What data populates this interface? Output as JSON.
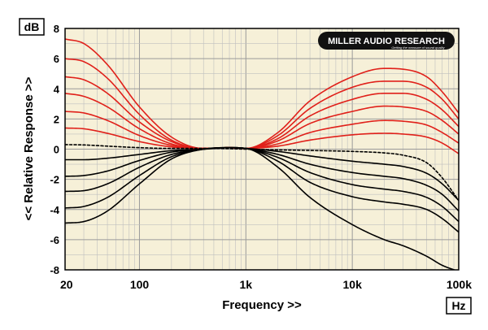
{
  "chart_data": {
    "type": "line",
    "title": "",
    "xlabel": "Frequency >>",
    "ylabel": "<< Relative Response >>",
    "x_unit": "Hz",
    "y_unit": "dB",
    "x_scale": "log",
    "xlim": [
      20,
      100000
    ],
    "ylim": [
      -8,
      8
    ],
    "x_ticks": [
      {
        "value": 20,
        "label": "20"
      },
      {
        "value": 100,
        "label": "100"
      },
      {
        "value": 1000,
        "label": "1k"
      },
      {
        "value": 10000,
        "label": "10k"
      },
      {
        "value": 100000,
        "label": "100k"
      }
    ],
    "y_ticks": [
      {
        "value": 8,
        "label": "8"
      },
      {
        "value": 6,
        "label": "6"
      },
      {
        "value": 4,
        "label": "4"
      },
      {
        "value": 2,
        "label": "2"
      },
      {
        "value": 0,
        "label": "0"
      },
      {
        "value": -2,
        "label": "-2"
      },
      {
        "value": -4,
        "label": "-4"
      },
      {
        "value": -6,
        "label": "-6"
      },
      {
        "value": -8,
        "label": "-8"
      }
    ],
    "grid": true,
    "legend": "none",
    "colors": {
      "boost": "#e0201a",
      "cut": "#000000",
      "flat": "#000000",
      "background": "#f6f0d8",
      "grid": "#bfbfbf"
    },
    "logo": {
      "brand": "MILLER AUDIO RESEARCH",
      "tagline": "Getting the measure of sound quality"
    },
    "series": [
      {
        "style": "boost",
        "points": [
          [
            20,
            7.3
          ],
          [
            30,
            7.0
          ],
          [
            50,
            5.6
          ],
          [
            100,
            2.8
          ],
          [
            200,
            0.8
          ],
          [
            400,
            0.05
          ],
          [
            700,
            0.1
          ],
          [
            1000,
            0.05
          ],
          [
            2000,
            1.1
          ],
          [
            4000,
            3.2
          ],
          [
            10000,
            4.8
          ],
          [
            20000,
            5.35
          ],
          [
            30000,
            5.3
          ],
          [
            50000,
            4.8
          ],
          [
            70000,
            3.8
          ],
          [
            100000,
            2.4
          ]
        ]
      },
      {
        "style": "boost",
        "points": [
          [
            20,
            6.0
          ],
          [
            30,
            5.8
          ],
          [
            50,
            4.7
          ],
          [
            100,
            2.3
          ],
          [
            200,
            0.6
          ],
          [
            400,
            0.05
          ],
          [
            700,
            0.1
          ],
          [
            1000,
            0.05
          ],
          [
            2000,
            0.9
          ],
          [
            4000,
            2.7
          ],
          [
            10000,
            4.1
          ],
          [
            20000,
            4.5
          ],
          [
            30000,
            4.5
          ],
          [
            50000,
            4.1
          ],
          [
            70000,
            3.3
          ],
          [
            100000,
            2.0
          ]
        ]
      },
      {
        "style": "boost",
        "points": [
          [
            20,
            4.8
          ],
          [
            30,
            4.6
          ],
          [
            50,
            3.7
          ],
          [
            100,
            1.8
          ],
          [
            200,
            0.5
          ],
          [
            400,
            0.05
          ],
          [
            700,
            0.1
          ],
          [
            1000,
            0.05
          ],
          [
            2000,
            0.7
          ],
          [
            4000,
            2.2
          ],
          [
            10000,
            3.3
          ],
          [
            20000,
            3.7
          ],
          [
            30000,
            3.7
          ],
          [
            50000,
            3.3
          ],
          [
            70000,
            2.6
          ],
          [
            100000,
            1.5
          ]
        ]
      },
      {
        "style": "boost",
        "points": [
          [
            20,
            3.7
          ],
          [
            30,
            3.5
          ],
          [
            50,
            2.8
          ],
          [
            100,
            1.35
          ],
          [
            200,
            0.35
          ],
          [
            400,
            0.05
          ],
          [
            700,
            0.1
          ],
          [
            1000,
            0.05
          ],
          [
            2000,
            0.55
          ],
          [
            4000,
            1.7
          ],
          [
            10000,
            2.5
          ],
          [
            20000,
            2.85
          ],
          [
            30000,
            2.8
          ],
          [
            50000,
            2.5
          ],
          [
            70000,
            1.9
          ],
          [
            100000,
            1.0
          ]
        ]
      },
      {
        "style": "boost",
        "points": [
          [
            20,
            2.5
          ],
          [
            30,
            2.4
          ],
          [
            50,
            1.9
          ],
          [
            100,
            0.9
          ],
          [
            200,
            0.25
          ],
          [
            400,
            0.05
          ],
          [
            700,
            0.1
          ],
          [
            1000,
            0.05
          ],
          [
            2000,
            0.35
          ],
          [
            4000,
            1.1
          ],
          [
            10000,
            1.65
          ],
          [
            20000,
            1.9
          ],
          [
            30000,
            1.85
          ],
          [
            50000,
            1.6
          ],
          [
            70000,
            1.1
          ],
          [
            100000,
            0.4
          ]
        ]
      },
      {
        "style": "boost",
        "points": [
          [
            20,
            1.4
          ],
          [
            30,
            1.35
          ],
          [
            50,
            1.05
          ],
          [
            100,
            0.5
          ],
          [
            200,
            0.15
          ],
          [
            400,
            0.05
          ],
          [
            700,
            0.1
          ],
          [
            1000,
            0.05
          ],
          [
            2000,
            0.2
          ],
          [
            4000,
            0.6
          ],
          [
            10000,
            0.95
          ],
          [
            20000,
            1.05
          ],
          [
            30000,
            1.0
          ],
          [
            50000,
            0.8
          ],
          [
            70000,
            0.4
          ],
          [
            100000,
            -0.3
          ]
        ]
      },
      {
        "style": "flat",
        "points": [
          [
            20,
            0.3
          ],
          [
            30,
            0.28
          ],
          [
            50,
            0.2
          ],
          [
            100,
            0.1
          ],
          [
            200,
            0.05
          ],
          [
            500,
            0.05
          ],
          [
            1000,
            0.0
          ],
          [
            2000,
            -0.05
          ],
          [
            5000,
            -0.1
          ],
          [
            10000,
            -0.15
          ],
          [
            20000,
            -0.25
          ],
          [
            30000,
            -0.4
          ],
          [
            50000,
            -0.9
          ],
          [
            70000,
            -1.9
          ],
          [
            100000,
            -3.4
          ]
        ]
      },
      {
        "style": "cut",
        "points": [
          [
            20,
            -0.7
          ],
          [
            30,
            -0.7
          ],
          [
            50,
            -0.6
          ],
          [
            100,
            -0.35
          ],
          [
            200,
            -0.1
          ],
          [
            400,
            0.0
          ],
          [
            700,
            0.1
          ],
          [
            1000,
            0.05
          ],
          [
            2000,
            -0.15
          ],
          [
            4000,
            -0.45
          ],
          [
            10000,
            -0.8
          ],
          [
            20000,
            -1.0
          ],
          [
            30000,
            -1.15
          ],
          [
            50000,
            -1.6
          ],
          [
            70000,
            -2.3
          ],
          [
            100000,
            -3.4
          ]
        ]
      },
      {
        "style": "cut",
        "points": [
          [
            20,
            -1.8
          ],
          [
            30,
            -1.75
          ],
          [
            50,
            -1.45
          ],
          [
            100,
            -0.75
          ],
          [
            200,
            -0.2
          ],
          [
            400,
            0.0
          ],
          [
            700,
            0.1
          ],
          [
            1000,
            0.05
          ],
          [
            2000,
            -0.35
          ],
          [
            4000,
            -1.0
          ],
          [
            10000,
            -1.55
          ],
          [
            20000,
            -1.8
          ],
          [
            30000,
            -1.95
          ],
          [
            50000,
            -2.4
          ],
          [
            70000,
            -3.0
          ],
          [
            100000,
            -4.1
          ]
        ]
      },
      {
        "style": "cut",
        "points": [
          [
            20,
            -2.8
          ],
          [
            30,
            -2.75
          ],
          [
            50,
            -2.3
          ],
          [
            100,
            -1.2
          ],
          [
            200,
            -0.35
          ],
          [
            400,
            0.0
          ],
          [
            700,
            0.1
          ],
          [
            1000,
            0.05
          ],
          [
            2000,
            -0.55
          ],
          [
            4000,
            -1.55
          ],
          [
            10000,
            -2.35
          ],
          [
            20000,
            -2.65
          ],
          [
            30000,
            -2.8
          ],
          [
            50000,
            -3.2
          ],
          [
            70000,
            -3.8
          ],
          [
            100000,
            -4.8
          ]
        ]
      },
      {
        "style": "cut",
        "points": [
          [
            20,
            -3.9
          ],
          [
            30,
            -3.8
          ],
          [
            50,
            -3.2
          ],
          [
            100,
            -1.75
          ],
          [
            200,
            -0.5
          ],
          [
            400,
            0.0
          ],
          [
            700,
            0.1
          ],
          [
            1000,
            0.05
          ],
          [
            2000,
            -0.8
          ],
          [
            4000,
            -2.2
          ],
          [
            10000,
            -3.15
          ],
          [
            20000,
            -3.5
          ],
          [
            30000,
            -3.65
          ],
          [
            50000,
            -4.0
          ],
          [
            70000,
            -4.6
          ],
          [
            100000,
            -5.5
          ]
        ]
      },
      {
        "style": "cut",
        "points": [
          [
            20,
            -4.9
          ],
          [
            30,
            -4.8
          ],
          [
            50,
            -4.1
          ],
          [
            100,
            -2.3
          ],
          [
            200,
            -0.65
          ],
          [
            400,
            0.0
          ],
          [
            700,
            0.1
          ],
          [
            1000,
            0.05
          ],
          [
            2000,
            -1.2
          ],
          [
            4000,
            -3.2
          ],
          [
            10000,
            -5.0
          ],
          [
            20000,
            -6.0
          ],
          [
            30000,
            -6.4
          ],
          [
            50000,
            -7.1
          ],
          [
            70000,
            -7.7
          ],
          [
            100000,
            -8.1
          ]
        ]
      }
    ]
  }
}
